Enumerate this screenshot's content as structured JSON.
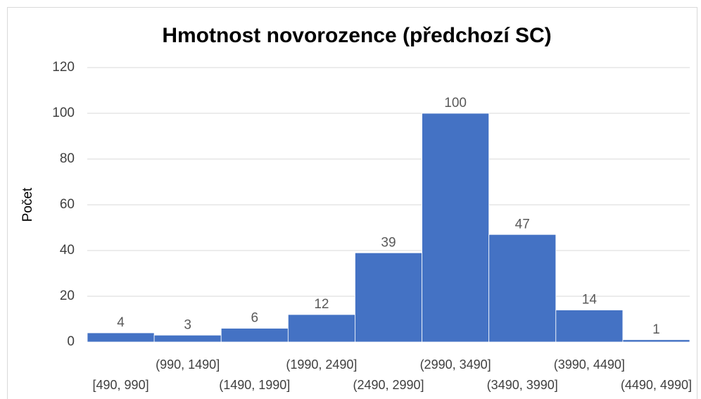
{
  "chart_data": {
    "type": "bar",
    "title": "Hmotnost novorozence (předchozí SC)",
    "y_label": "Počet",
    "categories": [
      "[490, 990]",
      "(990, 1490]",
      "(1490, 1990]",
      "(1990, 2490]",
      "(2490, 2990]",
      "(2990, 3490]",
      "(3490, 3990]",
      "(3990, 4490]",
      "(4490, 4990]"
    ],
    "values": [
      4,
      3,
      6,
      12,
      39,
      100,
      47,
      14,
      1
    ],
    "color": "#4472c4",
    "ylim": [
      0,
      120
    ],
    "yticks": [
      0,
      20,
      40,
      60,
      80,
      100,
      120
    ],
    "grid": true
  }
}
